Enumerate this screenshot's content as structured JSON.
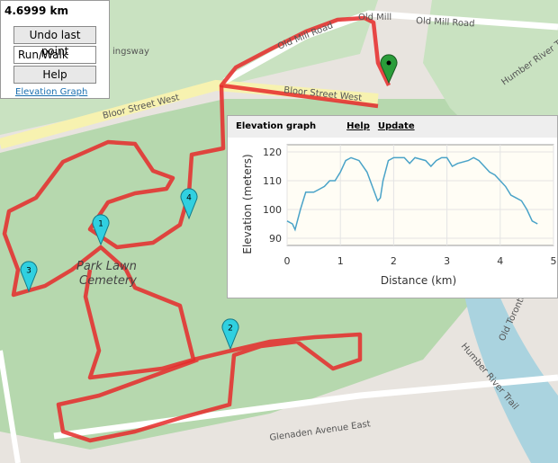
{
  "controls": {
    "distance": "4.6999 km",
    "undo": "Undo last point",
    "mode": "Run/Walk",
    "help": "Help",
    "elevation_link": "Elevation Graph"
  },
  "map": {
    "labels": [
      "Old Mill",
      "Old Mill Road",
      "Old Mill Road",
      "Bloor Street West",
      "Bloor Street West",
      "ingsway",
      "Park Lawn",
      "Cemetery",
      "Glenaden Avenue East",
      "Humber River Trail",
      "Humber River Trail",
      "Old Toronto"
    ],
    "markers": [
      "1",
      "2",
      "3",
      "4"
    ]
  },
  "panel": {
    "title": "Elevation graph",
    "help": "Help",
    "update": "Update"
  },
  "chart_data": {
    "type": "line",
    "x_label": "Distance (km)",
    "y_label": "Elevation (meters)",
    "series": [
      {
        "color": "#4aa3c8",
        "x": [
          0,
          0.1,
          0.15,
          0.25,
          0.35,
          0.5,
          0.6,
          0.7,
          0.8,
          0.9,
          1.0,
          1.1,
          1.2,
          1.35,
          1.5,
          1.6,
          1.7,
          1.75,
          1.8,
          1.9,
          2.0,
          2.2,
          2.3,
          2.4,
          2.6,
          2.7,
          2.8,
          2.9,
          3.0,
          3.1,
          3.2,
          3.4,
          3.5,
          3.6,
          3.7,
          3.8,
          3.9,
          4.0,
          4.1,
          4.2,
          4.3,
          4.4,
          4.5,
          4.6,
          4.7
        ],
        "values": [
          96,
          95,
          93,
          100,
          106,
          106,
          107,
          108,
          110,
          110,
          113,
          117,
          118,
          117,
          113,
          108,
          103,
          104,
          110,
          117,
          118,
          118,
          116,
          118,
          117,
          115,
          117,
          118,
          118,
          115,
          116,
          117,
          118,
          117,
          115,
          113,
          112,
          110,
          108,
          105,
          104,
          103,
          100,
          96,
          95
        ]
      }
    ],
    "xlim": [
      0,
      5
    ],
    "xticks": [
      0,
      1,
      2,
      3,
      4,
      5
    ],
    "ylim": [
      87.5,
      122.5
    ],
    "yticks": [
      90,
      100,
      110,
      120
    ],
    "grid": true
  }
}
